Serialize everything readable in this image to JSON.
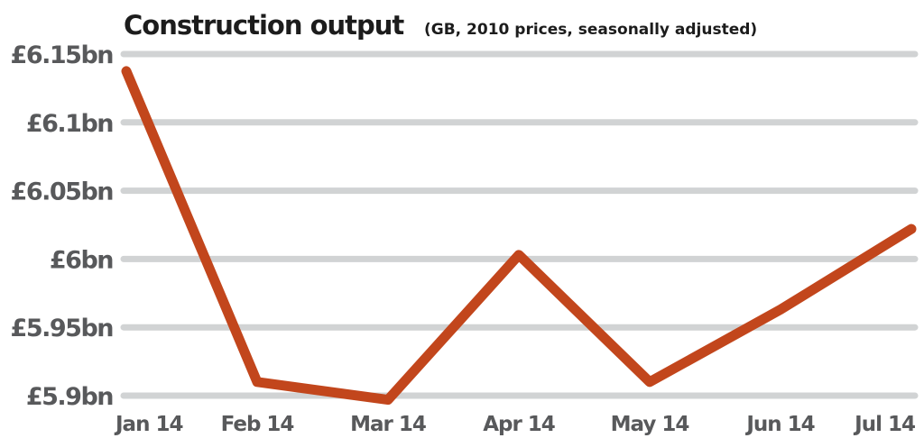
{
  "chart_data": {
    "type": "line",
    "title": "Construction output",
    "subtitle": "(GB, 2010 prices, seasonally adjusted)",
    "xlabel": "",
    "ylabel": "",
    "categories": [
      "Jan 14",
      "Feb 14",
      "Mar 14",
      "Apr 14",
      "May 14",
      "Jun 14",
      "Jul 14"
    ],
    "values": [
      6.1375,
      5.91,
      5.897,
      6.003,
      5.91,
      5.963,
      6.022
    ],
    "ylim": [
      5.9,
      6.15
    ],
    "yticks": [
      6.15,
      6.1,
      6.05,
      6.0,
      5.95,
      5.9
    ],
    "ytick_labels": [
      "£6.15bn",
      "£6.1bn",
      "£6.05bn",
      "£6bn",
      "£5.95bn",
      "£5.9bn"
    ],
    "grid": true,
    "legend": "none",
    "colors": {
      "line": "#c2461c",
      "grid": "#d1d3d4",
      "text": "#58595b",
      "title": "#1c1c1c"
    }
  }
}
